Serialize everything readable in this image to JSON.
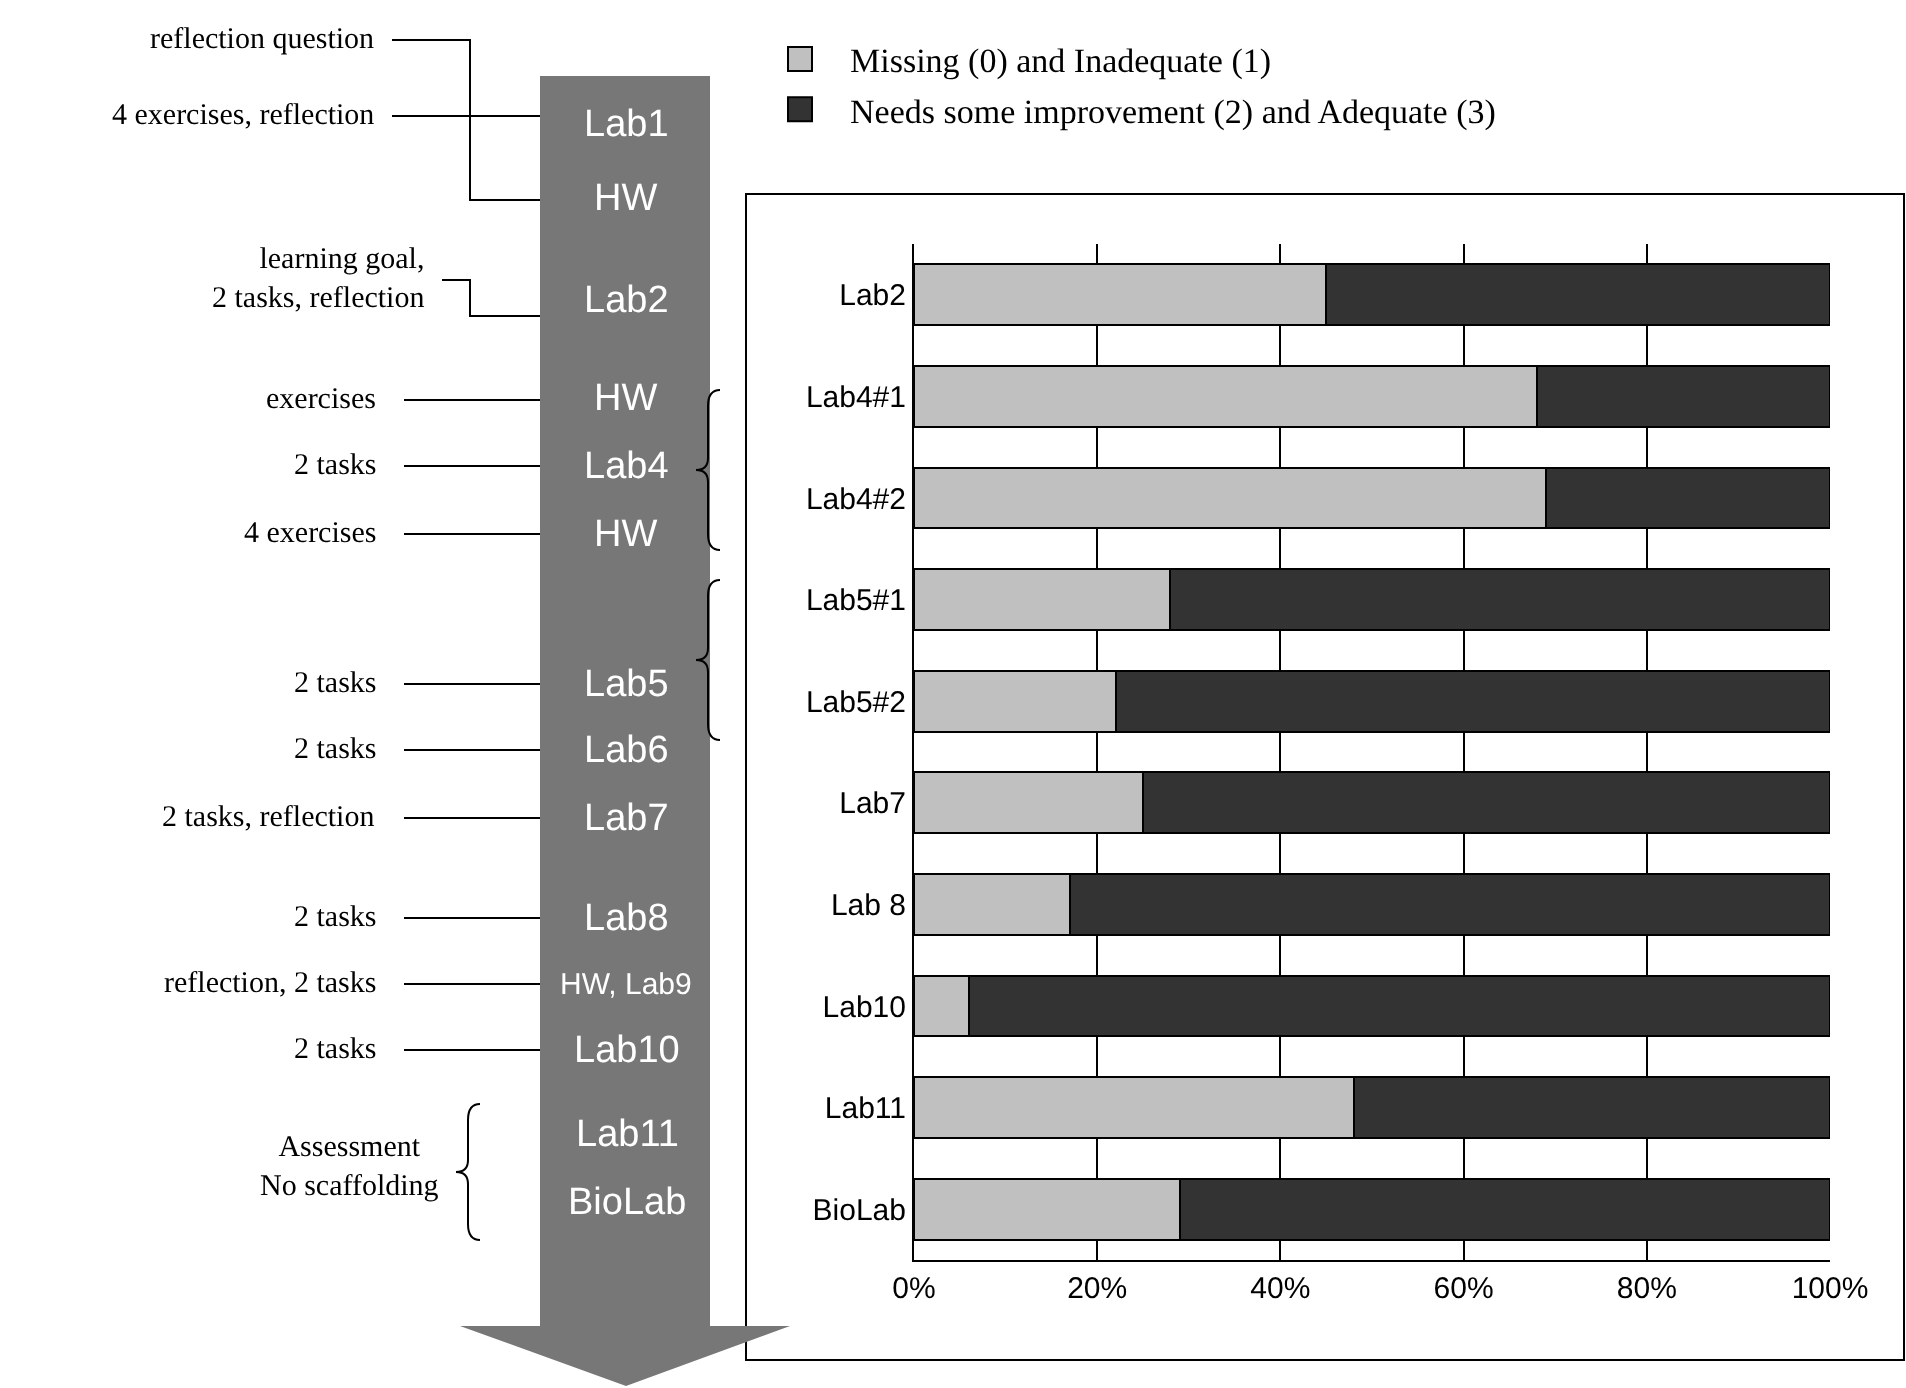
{
  "chart_data": {
    "type": "bar",
    "orientation": "horizontal",
    "stacked": true,
    "categories": [
      "Lab2",
      "Lab4#1",
      "Lab4#2",
      "Lab5#1",
      "Lab5#2",
      "Lab7",
      "Lab 8",
      "Lab10",
      "Lab11",
      "BioLab"
    ],
    "series": [
      {
        "name": "Missing (0) and Inadequate (1)",
        "color": "#c0c0c0",
        "values": [
          45,
          68,
          69,
          28,
          22,
          25,
          17,
          6,
          48,
          29
        ]
      },
      {
        "name": "Needs some improvement (2) and Adequate (3)",
        "color": "#333333",
        "values": [
          55,
          32,
          31,
          72,
          78,
          75,
          83,
          94,
          52,
          71
        ]
      }
    ],
    "xlim": [
      0,
      100
    ],
    "xticks": [
      {
        "value": 0,
        "label": "0%"
      },
      {
        "value": 20,
        "label": "20%"
      },
      {
        "value": 40,
        "label": "40%"
      },
      {
        "value": 60,
        "label": "60%"
      },
      {
        "value": 80,
        "label": "80%"
      },
      {
        "value": 100,
        "label": "100%"
      }
    ],
    "grid": "x",
    "legend": "top",
    "annotations": [
      "Lab1",
      "HW",
      "Lab2",
      "HW",
      "Lab4",
      "HW",
      "Lab5",
      "Lab6",
      "Lab7",
      "Lab8",
      "HW, Lab9",
      "Lab10",
      "Lab11",
      "BioLab",
      "reflection question",
      "4 exercises, reflection",
      "learning goal,\n2 tasks, reflection",
      "exercises",
      "2 tasks",
      "4 exercises",
      "2 tasks",
      "2 tasks",
      "2 tasks, reflection",
      "2 tasks",
      "reflection, 2 tasks",
      "2 tasks",
      "Assessment\nNo scaffolding"
    ]
  }
}
